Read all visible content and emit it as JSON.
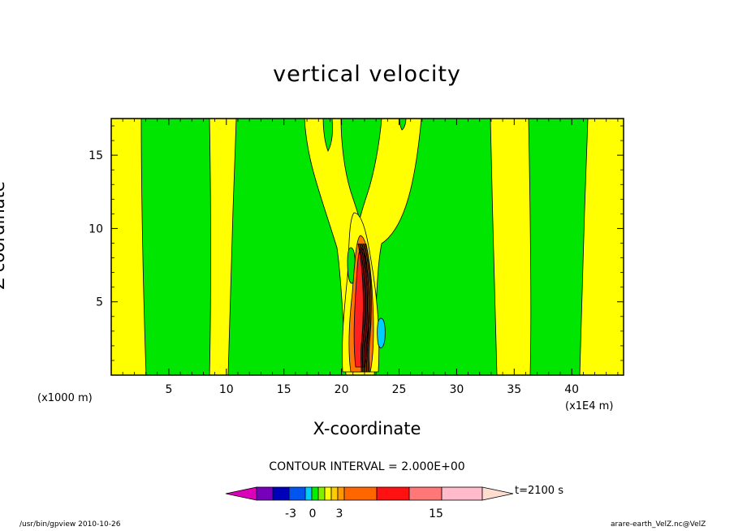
{
  "chart_data": {
    "type": "heatmap",
    "title": "vertical velocity",
    "xlabel": "X-coordinate",
    "ylabel": "Z-coordinate",
    "x_unit_note": "(x1000 m)",
    "x_scale_note": "(x1E4 m)",
    "xlim": [
      0,
      44.5
    ],
    "ylim": [
      0,
      17.5
    ],
    "x_ticks": [
      5,
      10,
      15,
      20,
      25,
      30,
      35,
      40
    ],
    "y_ticks": [
      5,
      10,
      15
    ],
    "contour_interval_text": "CONTOUR INTERVAL = 2.000E+00",
    "time_text": "t=2100 s",
    "colorbar": {
      "tick_labels": [
        "-3",
        "0",
        "3",
        "15"
      ],
      "colors": [
        "#dd00bb",
        "#7700bb",
        "#0000bb",
        "#0055ee",
        "#00ccff",
        "#00ee00",
        "#88ee00",
        "#ffff00",
        "#ffcc00",
        "#ff9900",
        "#ff6600",
        "#ff1111",
        "#ff7777",
        "#ffbbcc",
        "#ffdcd0"
      ]
    },
    "colors": {
      "yellow": "#ffff00",
      "green": "#00e600",
      "orange": "#ff7700",
      "red": "#ff2020",
      "cyan": "#00ccff"
    },
    "footer_left": "/usr/bin/gpview   2010-10-26",
    "footer_right": "arare-earth_VelZ.nc@VelZ"
  }
}
